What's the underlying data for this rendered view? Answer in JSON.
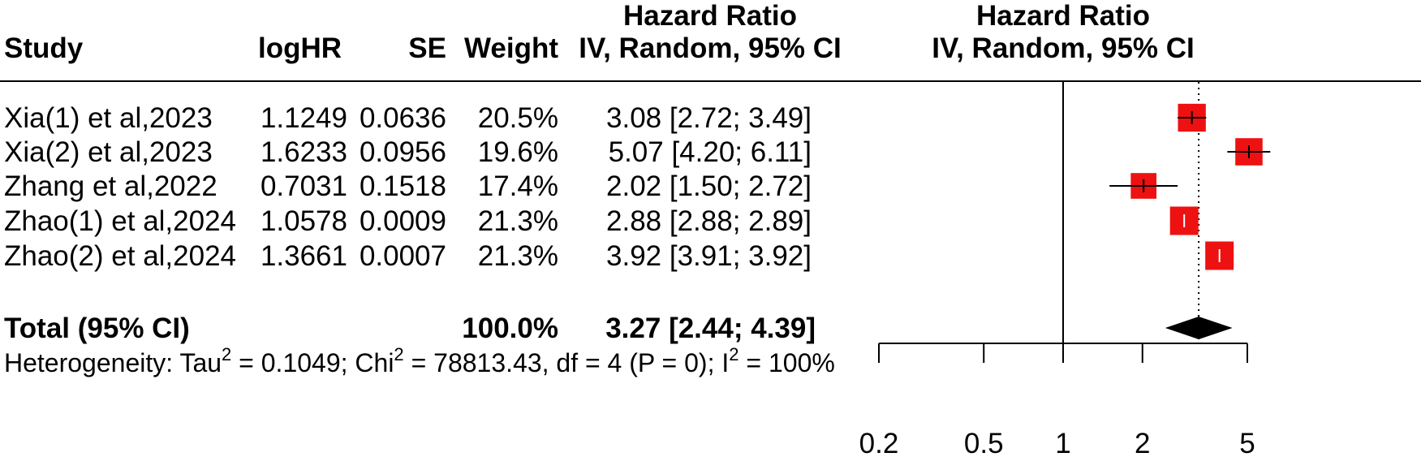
{
  "chart_data": {
    "type": "forest",
    "columns": {
      "study": "Study",
      "loghr": "logHR",
      "se": "SE",
      "weight": "Weight",
      "hr_title": "Hazard Ratio",
      "hr_sub": "IV, Random, 95% CI",
      "plot_title": "Hazard Ratio",
      "plot_sub": "IV, Random, 95% CI"
    },
    "studies": [
      {
        "name": "Xia(1) et al,2023",
        "loghr": "1.1249",
        "se": "0.0636",
        "weight": "20.5%",
        "ci_text": "3.08 [2.72; 3.49]",
        "hr": 3.08,
        "lower": 2.72,
        "upper": 3.49,
        "w": 20.5
      },
      {
        "name": "Xia(2) et al,2023",
        "loghr": "1.6233",
        "se": "0.0956",
        "weight": "19.6%",
        "ci_text": "5.07 [4.20; 6.11]",
        "hr": 5.07,
        "lower": 4.2,
        "upper": 6.11,
        "w": 19.6
      },
      {
        "name": "Zhang et al,2022",
        "loghr": "0.7031",
        "se": "0.1518",
        "weight": "17.4%",
        "ci_text": "2.02 [1.50; 2.72]",
        "hr": 2.02,
        "lower": 1.5,
        "upper": 2.72,
        "w": 17.4
      },
      {
        "name": "Zhao(1) et al,2024",
        "loghr": "1.0578",
        "se": "0.0009",
        "weight": "21.3%",
        "ci_text": "2.88 [2.88; 2.89]",
        "hr": 2.88,
        "lower": 2.88,
        "upper": 2.89,
        "w": 21.3
      },
      {
        "name": "Zhao(2) et al,2024",
        "loghr": "1.3661",
        "se": "0.0007",
        "weight": "21.3%",
        "ci_text": "3.92 [3.91; 3.92]",
        "hr": 3.92,
        "lower": 3.91,
        "upper": 3.92,
        "w": 21.3
      }
    ],
    "total": {
      "label": "Total (95% CI)",
      "weight": "100.0%",
      "ci_text": "3.27 [2.44; 4.39]",
      "hr": 3.27,
      "lower": 2.44,
      "upper": 4.39
    },
    "heterogeneity": {
      "prefix": "Heterogeneity: Tau",
      "tau_sup": "2",
      "tau_value": " = 0.1049; Chi",
      "chi_sup": "2",
      "chi_value": " = 78813.43, df = 4 (P = 0); I",
      "i_sup": "2",
      "i_value": " = 100%"
    },
    "x_axis": {
      "scale": "log",
      "ticks": [
        0.2,
        0.5,
        1,
        2,
        5
      ],
      "tick_labels": [
        "0.2",
        "0.5",
        "1",
        "2",
        "5"
      ],
      "xlim": [
        0.2,
        5
      ]
    },
    "reference_line": 1,
    "pooled_line": 3.27,
    "colors": {
      "box": "#ee1111",
      "diamond": "#000000",
      "line": "#000000"
    }
  }
}
